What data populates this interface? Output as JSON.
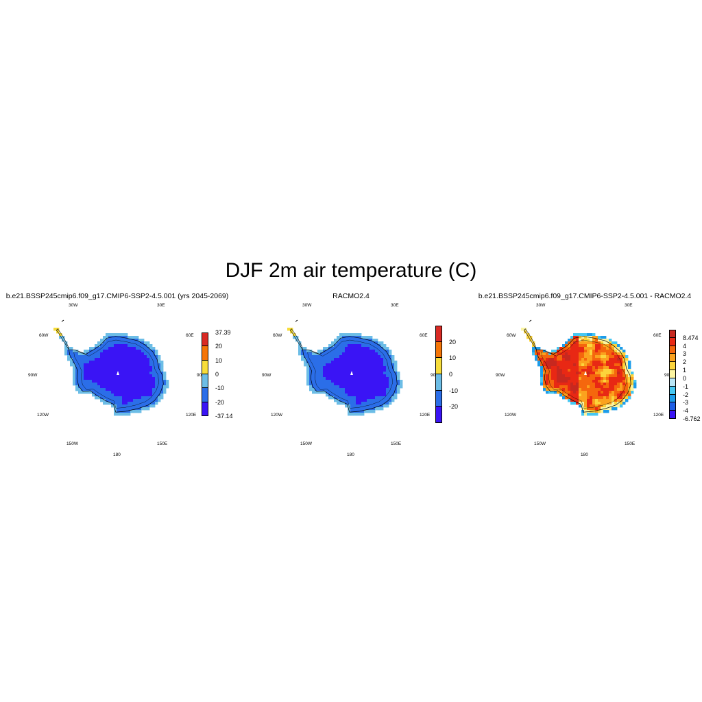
{
  "title": "DJF 2m air temperature (C)",
  "lon_labels": [
    "30W",
    "30E",
    "60W",
    "60E",
    "90W",
    "90E",
    "120W",
    "120E",
    "150W",
    "150E",
    "180"
  ],
  "colors": {
    "coast": "#000000",
    "t_ramp": [
      "#3a14f5",
      "#2b6ee8",
      "#6cbde6",
      "#f7dd3b",
      "#f57507",
      "#d92a24"
    ],
    "diff_ramp": [
      "#3a14f5",
      "#1f5fe6",
      "#1c9cea",
      "#45c7f2",
      "#b9e6f7",
      "#fbf4a1",
      "#fcd43b",
      "#fba21e",
      "#f5670d",
      "#e82814",
      "#c7281f"
    ]
  },
  "panels": [
    {
      "title": "b.e21.BSSP245cmip6.f09_g17.CMIP6-SSP2-4.5.001 (yrs 2045-2069)",
      "field": "model",
      "colorbar": {
        "colors": [
          "#d92a24",
          "#f57507",
          "#f7dd3b",
          "#6cbde6",
          "#2b6ee8",
          "#3a14f5"
        ],
        "ticks": [
          "37.39",
          "20",
          "10",
          "0",
          "-10",
          "-20",
          "-37.14"
        ]
      }
    },
    {
      "title": "RACMO2.4",
      "field": "obs",
      "colorbar": {
        "colors": [
          "#d92a24",
          "#f57507",
          "#f7dd3b",
          "#6cbde6",
          "#2b6ee8",
          "#3a14f5"
        ],
        "ticks": [
          "20",
          "10",
          "0",
          "-10",
          "-20"
        ]
      }
    },
    {
      "title": "b.e21.BSSP245cmip6.f09_g17.CMIP6-SSP2-4.5.001 - RACMO2.4",
      "field": "diff",
      "colorbar": {
        "colors": [
          "#c7281f",
          "#e82814",
          "#f5670d",
          "#fba21e",
          "#fcd43b",
          "#fbf4a1",
          "#b9e6f7",
          "#45c7f2",
          "#1c9cea",
          "#1f5fe6",
          "#3a14f5"
        ],
        "ticks": [
          "8.474",
          "4",
          "3",
          "2",
          "1",
          "0",
          "-1",
          "-2",
          "-3",
          "-4",
          "-6.762"
        ]
      }
    }
  ]
}
